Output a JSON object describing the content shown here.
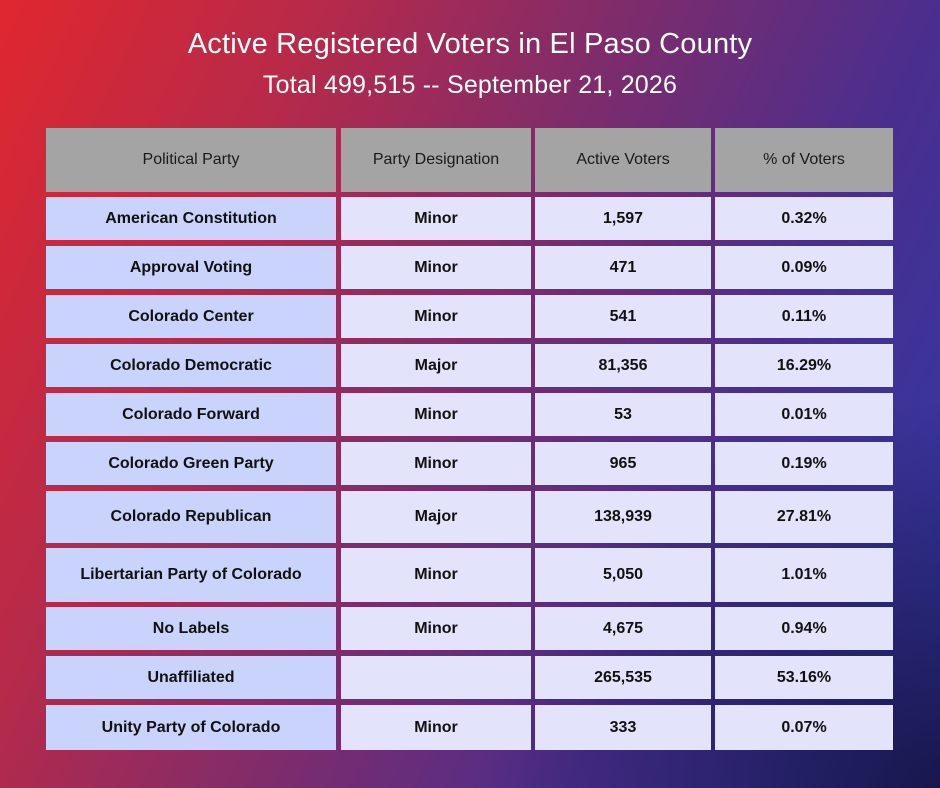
{
  "title": "Active Registered Voters in El Paso County",
  "subtitle": "Total 499,515 -- September 21, 2026",
  "table": {
    "headers": [
      "Political Party",
      "Party Designation",
      "Active Voters",
      "% of Voters"
    ],
    "rows": [
      [
        "American Constitution",
        "Minor",
        "1,597",
        "0.32%"
      ],
      [
        "Approval Voting",
        "Minor",
        "471",
        "0.09%"
      ],
      [
        "Colorado Center",
        "Minor",
        "541",
        "0.11%"
      ],
      [
        "Colorado Democratic",
        "Major",
        "81,356",
        "16.29%"
      ],
      [
        "Colorado Forward",
        "Minor",
        "53",
        "0.01%"
      ],
      [
        "Colorado Green Party",
        "Minor",
        "965",
        "0.19%"
      ],
      [
        "Colorado Republican",
        "Major",
        "138,939",
        "27.81%"
      ],
      [
        "Libertarian Party of Colorado",
        "Minor",
        "5,050",
        "1.01%"
      ],
      [
        "No Labels",
        "Minor",
        "4,675",
        "0.94%"
      ],
      [
        "Unaffiliated",
        "",
        "265,535",
        "53.16%"
      ],
      [
        "Unity Party of Colorado",
        "Minor",
        "333",
        "0.07%"
      ]
    ]
  }
}
